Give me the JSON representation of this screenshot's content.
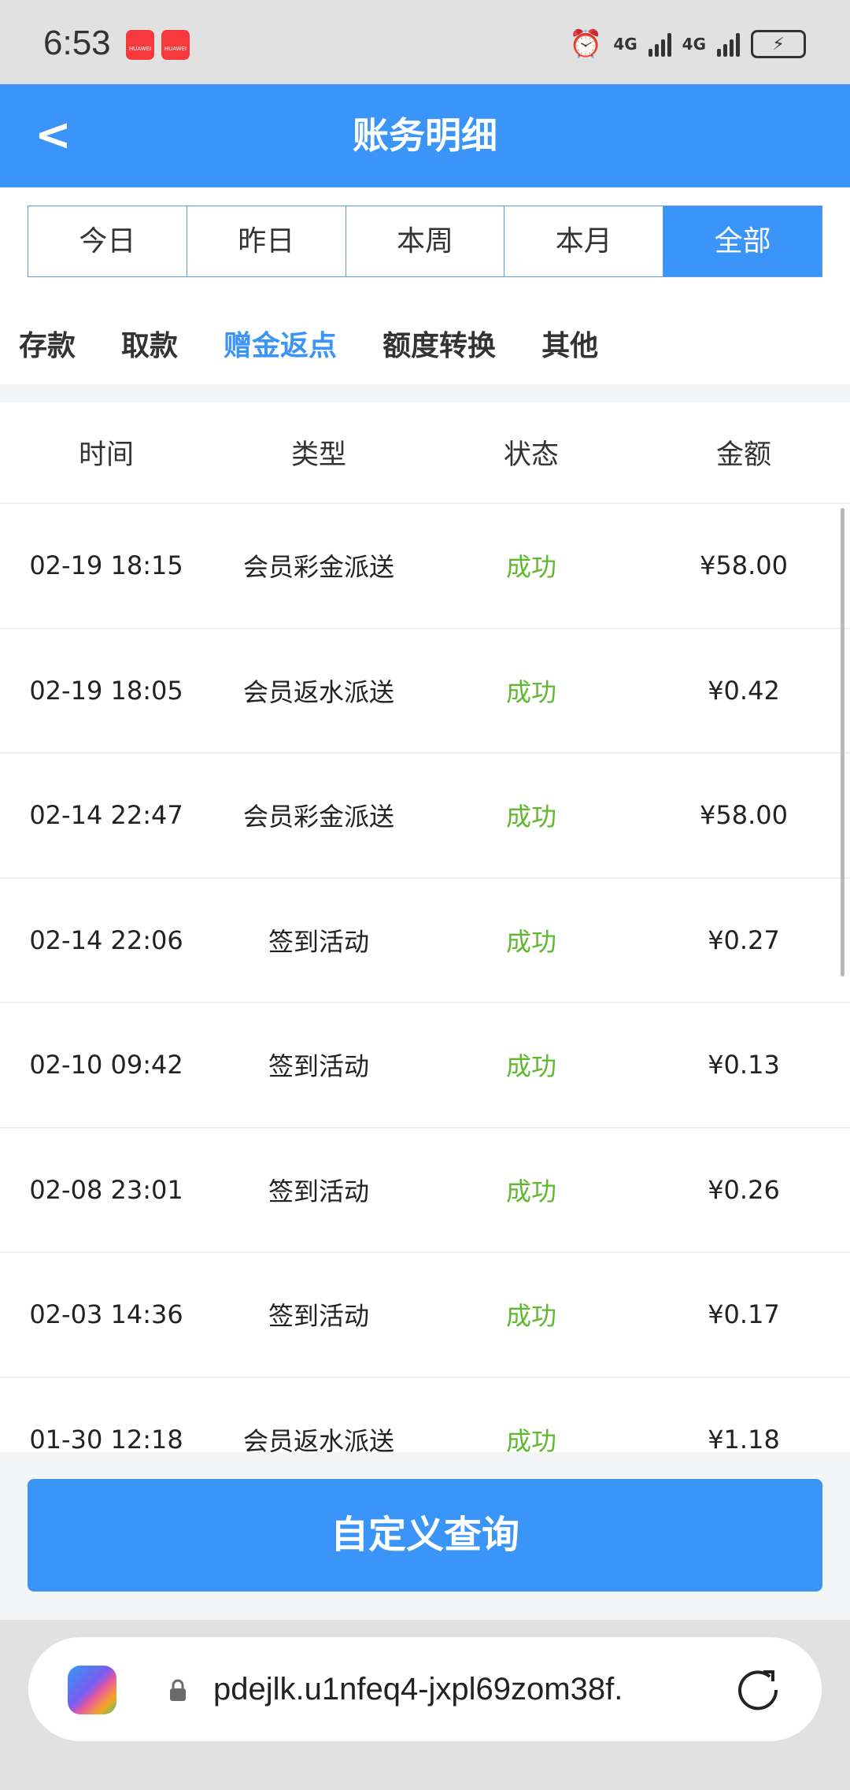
{
  "status_bar": {
    "time": "6:53",
    "notification_badge": "HUAWEI",
    "network": "4G"
  },
  "header": {
    "title": "账务明细",
    "back_icon": "chevron-left-icon"
  },
  "period_tabs": [
    {
      "label": "今日"
    },
    {
      "label": "昨日"
    },
    {
      "label": "本周"
    },
    {
      "label": "本月"
    },
    {
      "label": "全部",
      "active": true
    }
  ],
  "category_tabs": [
    {
      "label": "存款"
    },
    {
      "label": "取款"
    },
    {
      "label": "赠金返点",
      "active": true
    },
    {
      "label": "额度转换"
    },
    {
      "label": "其他"
    }
  ],
  "table": {
    "columns": [
      "时间",
      "类型",
      "状态",
      "金额"
    ],
    "rows": [
      [
        "02-19 18:15",
        "会员彩金派送",
        "成功",
        "¥58.00"
      ],
      [
        "02-19 18:05",
        "会员返水派送",
        "成功",
        "¥0.42"
      ],
      [
        "02-14 22:47",
        "会员彩金派送",
        "成功",
        "¥58.00"
      ],
      [
        "02-14 22:06",
        "签到活动",
        "成功",
        "¥0.27"
      ],
      [
        "02-10 09:42",
        "签到活动",
        "成功",
        "¥0.13"
      ],
      [
        "02-08 23:01",
        "签到活动",
        "成功",
        "¥0.26"
      ],
      [
        "02-03 14:36",
        "签到活动",
        "成功",
        "¥0.17"
      ],
      [
        "01-30 12:18",
        "会员返水派送",
        "成功",
        "¥1.18"
      ]
    ]
  },
  "footer": {
    "custom_query_label": "自定义查询"
  },
  "browser": {
    "url": "pdejlk.u1nfeq4-jxpl69zom38f."
  },
  "colors": {
    "accent": "#3b94f7",
    "success": "#5fb830",
    "status_bar_bg": "#e1e1e1"
  }
}
